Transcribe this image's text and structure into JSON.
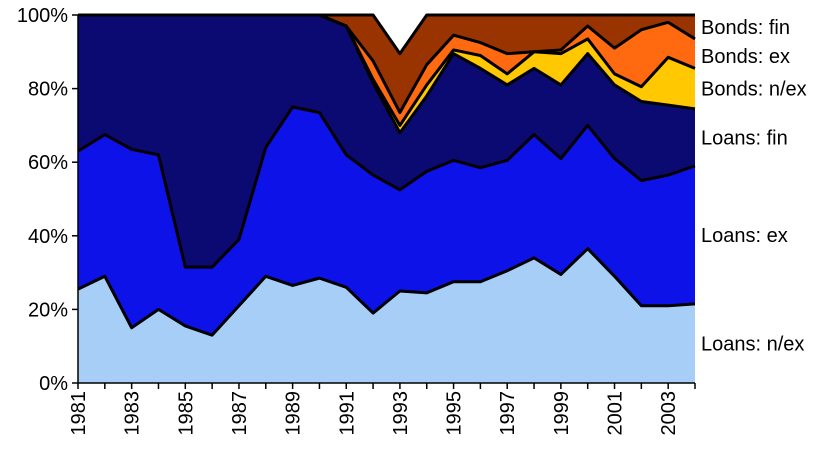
{
  "chart_data": {
    "type": "area",
    "stacked": true,
    "percent": true,
    "x": [
      "1981",
      "1982",
      "1983",
      "1984",
      "1985",
      "1986",
      "1987",
      "1988",
      "1989",
      "1990",
      "1991",
      "1992",
      "1993",
      "1994",
      "1995",
      "1996",
      "1997",
      "1998",
      "1999",
      "2000",
      "2001",
      "2002",
      "2003",
      "2004"
    ],
    "x_tick_labels": [
      "1981",
      "1983",
      "1985",
      "1987",
      "1989",
      "1991",
      "1993",
      "1995",
      "1997",
      "1999",
      "2001",
      "2003"
    ],
    "y_tick_labels": [
      "0%",
      "20%",
      "40%",
      "60%",
      "80%",
      "100%"
    ],
    "ylim": [
      0,
      100
    ],
    "grid": false,
    "legend_placement": "right",
    "series": [
      {
        "name": "Loans: n/ex",
        "color": "#a6cef7",
        "values": [
          25.5,
          29,
          15,
          20,
          15.5,
          13,
          21,
          29,
          26.5,
          28.5,
          26,
          19,
          25,
          24.5,
          27.5,
          27.5,
          30.5,
          34,
          29.5,
          36.5,
          29,
          21,
          21,
          21.5
        ]
      },
      {
        "name": "Loans: ex",
        "color": "#0d12e8",
        "values": [
          37.5,
          38.5,
          48.5,
          42,
          16,
          18.5,
          18,
          35,
          48.5,
          45,
          36,
          37.5,
          27.5,
          33,
          33,
          31,
          30,
          33.5,
          31.5,
          33.5,
          32,
          34,
          35.5,
          37.5
        ]
      },
      {
        "name": "Loans: fin",
        "color": "#0a0a72",
        "values": [
          37,
          32.5,
          36.5,
          38,
          68.5,
          68.5,
          61,
          36,
          25,
          26.5,
          35,
          25,
          15.5,
          20.5,
          29,
          27,
          20.5,
          18,
          20,
          19.5,
          20,
          21.5,
          19,
          15.5
        ]
      },
      {
        "name": "Bonds: n/ex",
        "color": "#ffc800",
        "values": [
          0,
          0,
          0,
          0,
          0,
          0,
          0,
          0,
          0,
          0,
          0,
          1,
          2,
          3,
          1,
          3.5,
          3,
          4.5,
          8.5,
          4,
          3,
          4,
          13,
          11
        ]
      },
      {
        "name": "Bonds: ex",
        "color": "#ff6a10",
        "values": [
          0,
          0,
          0,
          0,
          0,
          0,
          0,
          0,
          0,
          0,
          0,
          5,
          3.5,
          5.5,
          4,
          3.5,
          5.5,
          0,
          1,
          3.5,
          7,
          15.5,
          9.5,
          8
        ]
      },
      {
        "name": "Bonds: fin",
        "color": "#993300",
        "values": [
          0,
          0,
          0,
          0,
          0,
          0,
          0,
          0,
          0,
          0,
          3,
          12.5,
          16,
          13.5,
          5.5,
          7.5,
          10.5,
          10,
          9.5,
          3,
          9,
          4,
          2,
          6.5
        ]
      }
    ]
  }
}
